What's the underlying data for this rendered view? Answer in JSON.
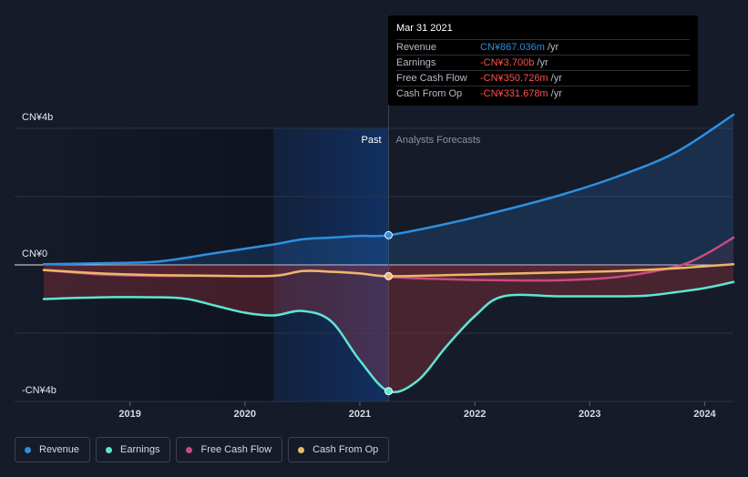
{
  "chart_data": {
    "type": "line",
    "title": "",
    "y_axis_labels": [
      "CN¥4b",
      "CN¥0",
      "-CN¥4b"
    ],
    "ylim": [
      -4,
      4
    ],
    "x_ticks": [
      "2019",
      "2020",
      "2021",
      "2022",
      "2023",
      "2024"
    ],
    "xlim": [
      2018.25,
      2024.25
    ],
    "past_label": "Past",
    "forecast_label": "Analysts Forecasts",
    "past_end": 2021.25,
    "series": [
      {
        "name": "Revenue",
        "color": "#2d8fe0",
        "x": [
          2018.25,
          2018.75,
          2019.25,
          2019.75,
          2020.25,
          2020.5,
          2020.75,
          2021.0,
          2021.25,
          2021.75,
          2022.25,
          2022.75,
          2023.25,
          2023.75,
          2024.25
        ],
        "values": [
          0.02,
          0.05,
          0.1,
          0.35,
          0.6,
          0.75,
          0.8,
          0.85,
          0.87,
          1.2,
          1.6,
          2.05,
          2.6,
          3.3,
          4.4
        ]
      },
      {
        "name": "Earnings",
        "color": "#5ee6d0",
        "x": [
          2018.25,
          2018.75,
          2019.25,
          2019.5,
          2019.75,
          2020.0,
          2020.25,
          2020.5,
          2020.75,
          2021.0,
          2021.25,
          2021.5,
          2021.75,
          2022.0,
          2022.25,
          2022.75,
          2023.25,
          2023.5,
          2023.75,
          2024.0,
          2024.25
        ],
        "values": [
          -1.0,
          -0.95,
          -0.95,
          -1.0,
          -1.2,
          -1.4,
          -1.48,
          -1.35,
          -1.65,
          -2.8,
          -3.7,
          -3.4,
          -2.4,
          -1.5,
          -0.92,
          -0.92,
          -0.92,
          -0.9,
          -0.8,
          -0.68,
          -0.5
        ]
      },
      {
        "name": "Free Cash Flow",
        "color": "#c84b80",
        "x": [
          2018.25,
          2018.75,
          2019.25,
          2019.75,
          2020.25,
          2020.5,
          2020.75,
          2021.0,
          2021.25,
          2021.75,
          2022.25,
          2022.75,
          2023.25,
          2023.75,
          2024.0,
          2024.25
        ],
        "values": [
          -0.15,
          -0.28,
          -0.32,
          -0.32,
          -0.32,
          -0.18,
          -0.2,
          -0.25,
          -0.35,
          -0.42,
          -0.45,
          -0.45,
          -0.35,
          -0.05,
          0.3,
          0.8
        ]
      },
      {
        "name": "Cash From Op",
        "color": "#e8b96a",
        "x": [
          2018.25,
          2018.75,
          2019.25,
          2019.75,
          2020.25,
          2020.5,
          2020.75,
          2021.0,
          2021.25,
          2021.75,
          2022.25,
          2022.75,
          2023.25,
          2023.75,
          2024.25
        ],
        "values": [
          -0.15,
          -0.25,
          -0.3,
          -0.32,
          -0.32,
          -0.18,
          -0.2,
          -0.25,
          -0.33,
          -0.3,
          -0.26,
          -0.22,
          -0.18,
          -0.1,
          0.02
        ]
      }
    ],
    "tooltip": {
      "date": "Mar 31 2021",
      "x": 2021.25,
      "rows": [
        {
          "name": "Revenue",
          "value": "CN¥867.036m",
          "unit": " /yr",
          "color": "#2d8fe0"
        },
        {
          "name": "Earnings",
          "value": "-CN¥3.700b",
          "unit": " /yr",
          "color": "#ff4f4f"
        },
        {
          "name": "Free Cash Flow",
          "value": "-CN¥350.726m",
          "unit": " /yr",
          "color": "#ff4f4f"
        },
        {
          "name": "Cash From Op",
          "value": "-CN¥331.678m",
          "unit": " /yr",
          "color": "#ff4f4f"
        }
      ]
    },
    "legend": [
      {
        "name": "Revenue",
        "color": "#2d8fe0"
      },
      {
        "name": "Earnings",
        "color": "#5ee6d0"
      },
      {
        "name": "Free Cash Flow",
        "color": "#c84b80"
      },
      {
        "name": "Cash From Op",
        "color": "#e8b96a"
      }
    ],
    "grid": true
  }
}
